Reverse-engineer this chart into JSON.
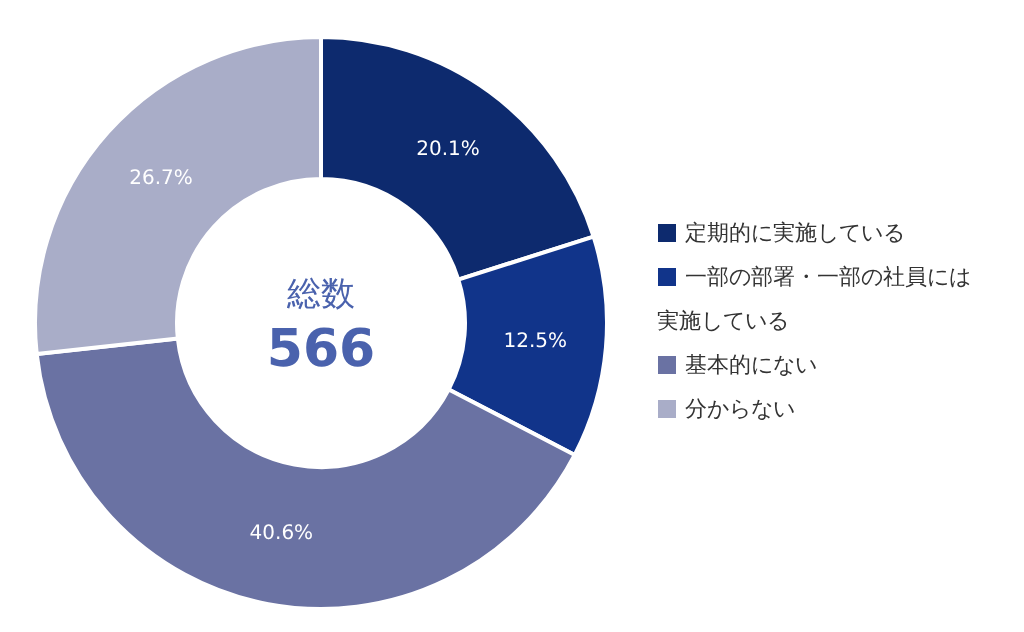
{
  "chart_data": {
    "type": "donut",
    "categories": [
      "定期的に実施している",
      "一部の部署・一部の社員には実施している",
      "基本的にない",
      "分からない"
    ],
    "values": [
      20.1,
      12.5,
      40.6,
      26.7
    ],
    "colors": [
      "#0d2a6e",
      "#11348a",
      "#6a72a3",
      "#a9adc8"
    ],
    "value_labels": [
      "20.1%",
      "12.5%",
      "40.6%",
      "26.7%"
    ],
    "legend": "right",
    "annotations": [
      "総数",
      "566"
    ]
  }
}
